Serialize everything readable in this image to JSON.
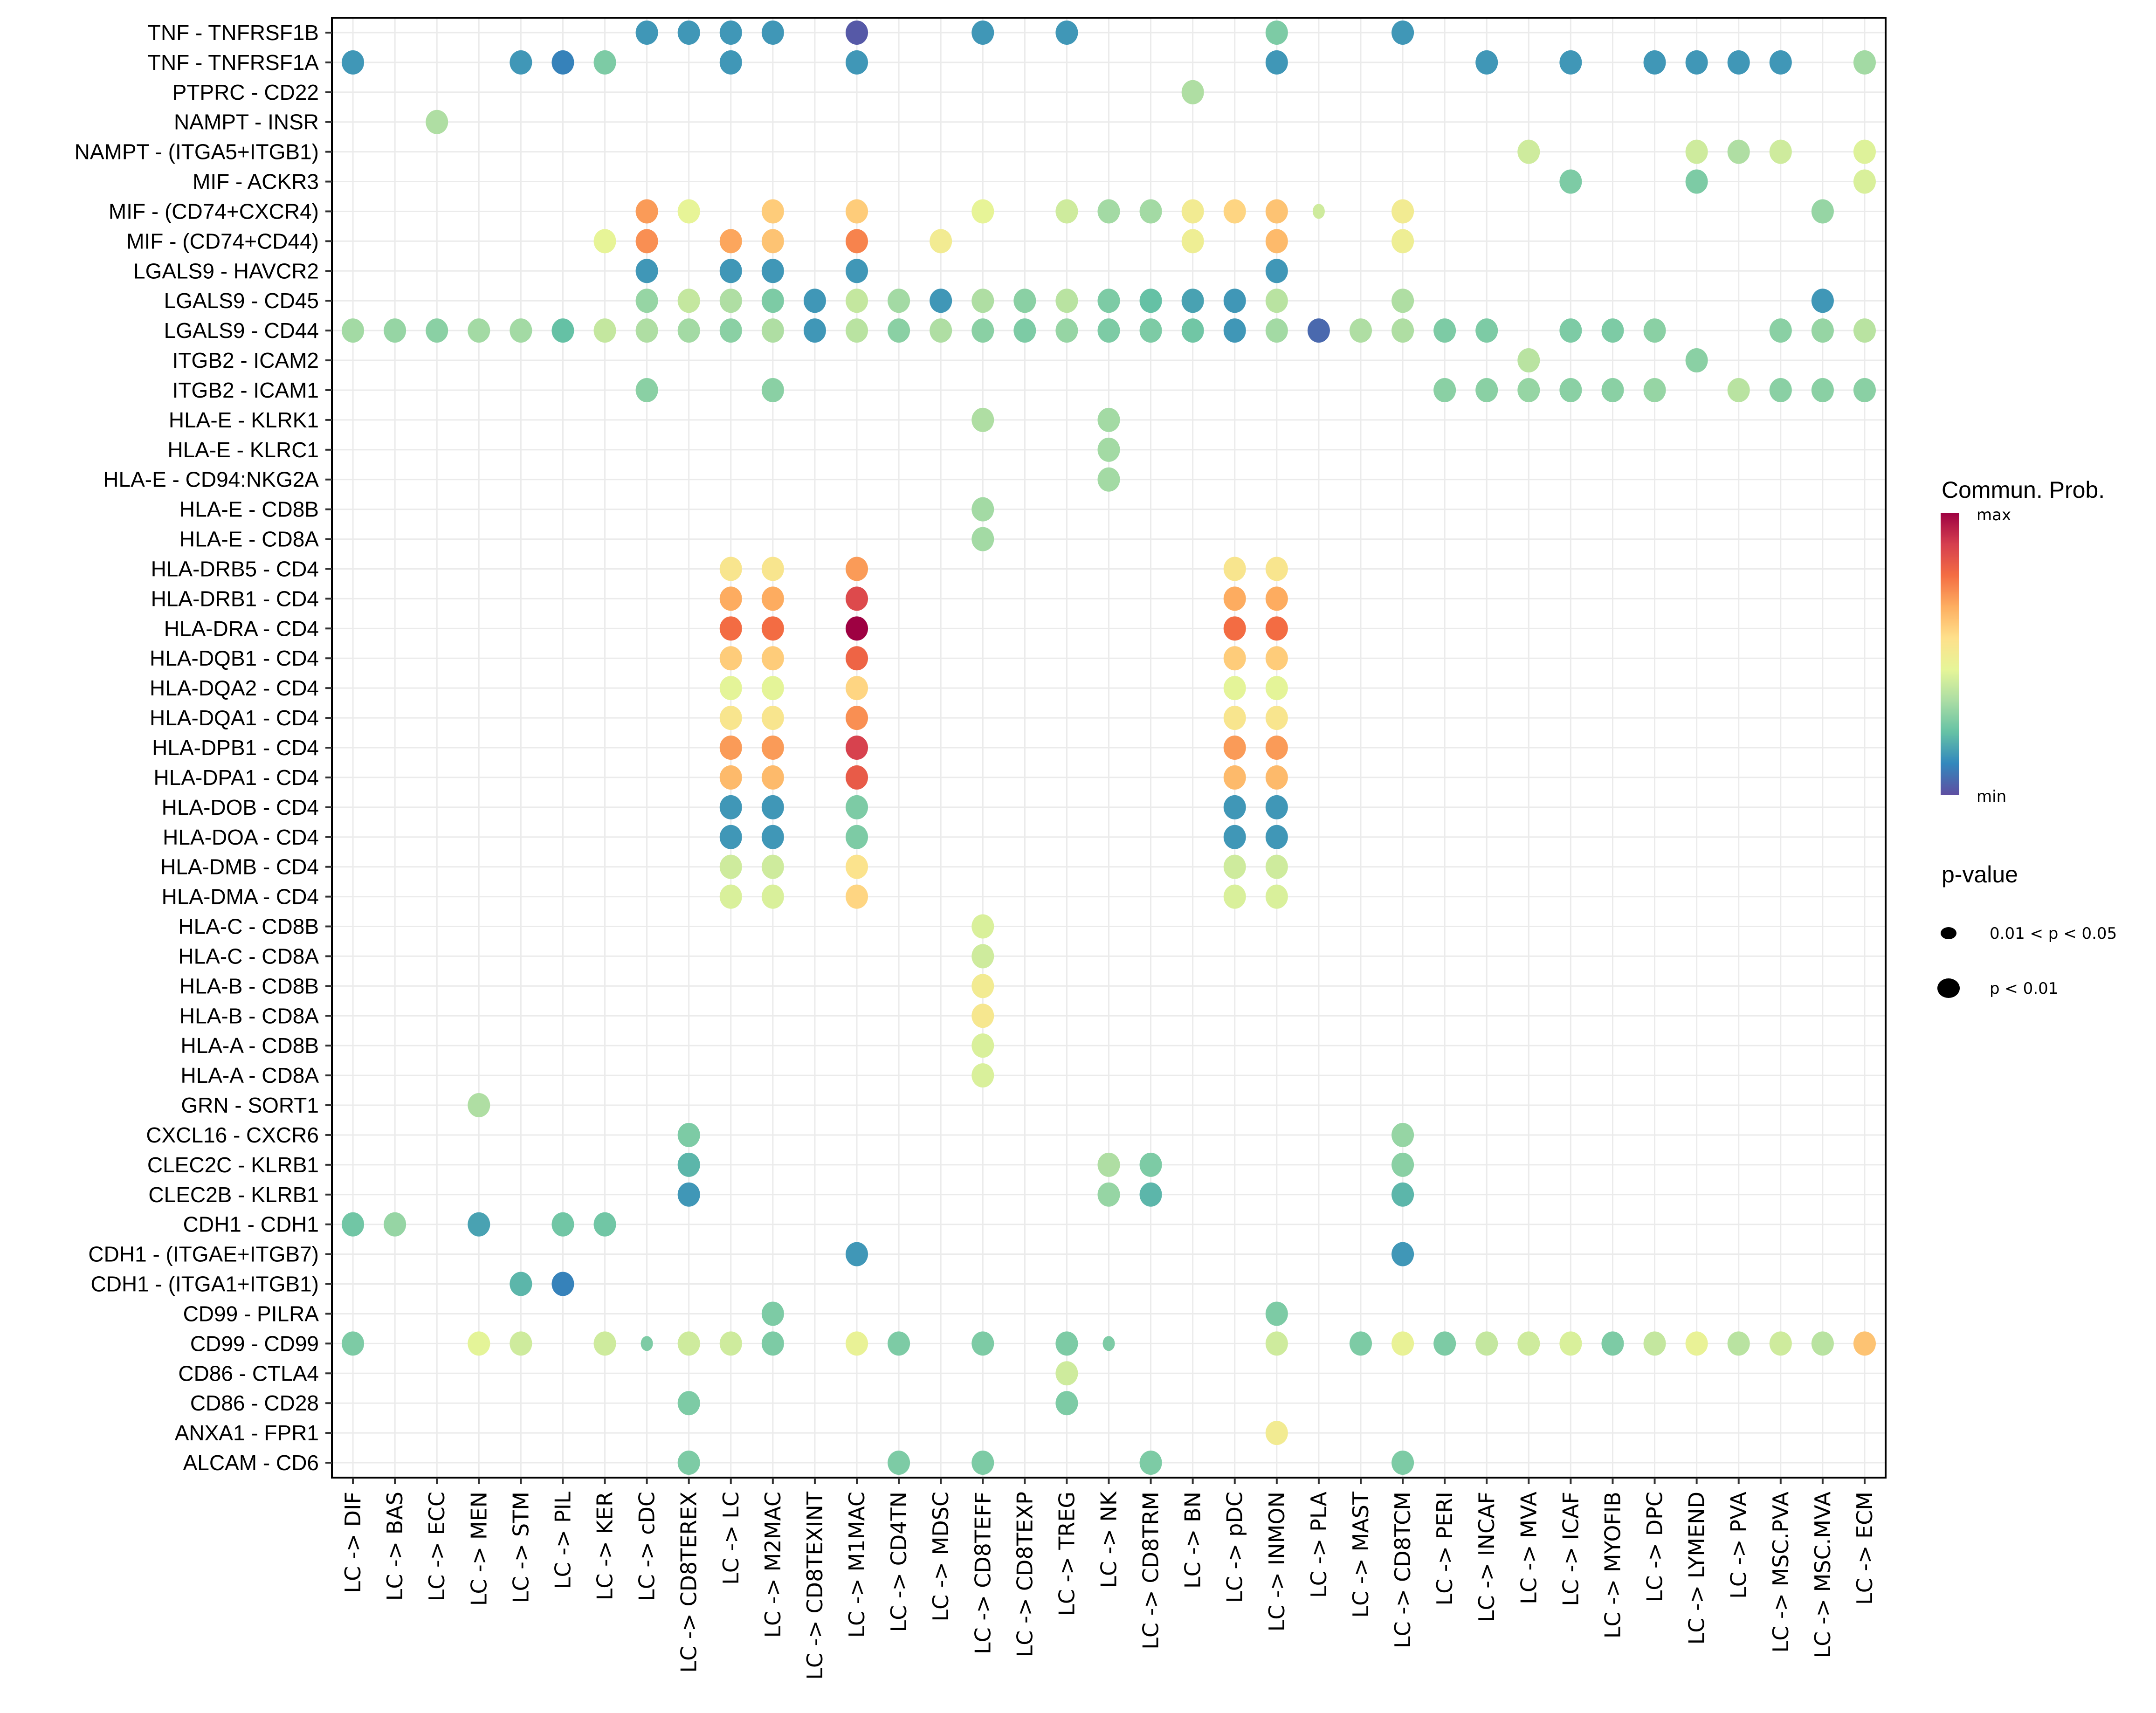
{
  "chart_data": {
    "type": "scatter",
    "subtype": "dot-plot",
    "title": "",
    "xlabel": "",
    "ylabel": "",
    "grid": true,
    "legend_position": "right",
    "categories_x": [
      "LC -> DIF",
      "LC -> BAS",
      "LC -> ECC",
      "LC -> MEN",
      "LC -> STM",
      "LC -> PIL",
      "LC -> KER",
      "LC -> cDC",
      "LC -> CD8TEREX",
      "LC -> LC",
      "LC -> M2MAC",
      "LC -> CD8TEXINT",
      "LC -> M1MAC",
      "LC -> CD4TN",
      "LC -> MDSC",
      "LC -> CD8TEFF",
      "LC -> CD8TEXP",
      "LC -> TREG",
      "LC -> NK",
      "LC -> CD8TRM",
      "LC -> BN",
      "LC -> pDC",
      "LC -> INMON",
      "LC -> PLA",
      "LC -> MAST",
      "LC -> CD8TCM",
      "LC -> PERI",
      "LC -> INCAF",
      "LC -> MVA",
      "LC -> ICAF",
      "LC -> MYOFIB",
      "LC -> DPC",
      "LC -> LYMEND",
      "LC -> PVA",
      "LC -> MSC.PVA",
      "LC -> MSC.MVA",
      "LC -> ECM"
    ],
    "categories_y": [
      "TNF - TNFRSF1B",
      "TNF - TNFRSF1A",
      "PTPRC - CD22",
      "NAMPT - INSR",
      "NAMPT - (ITGA5+ITGB1)",
      "MIF - ACKR3",
      "MIF - (CD74+CXCR4)",
      "MIF - (CD74+CD44)",
      "LGALS9 - HAVCR2",
      "LGALS9 - CD45",
      "LGALS9 - CD44",
      "ITGB2 - ICAM2",
      "ITGB2 - ICAM1",
      "HLA-E - KLRK1",
      "HLA-E - KLRC1",
      "HLA-E - CD94:NKG2A",
      "HLA-E - CD8B",
      "HLA-E - CD8A",
      "HLA-DRB5 - CD4",
      "HLA-DRB1 - CD4",
      "HLA-DRA - CD4",
      "HLA-DQB1 - CD4",
      "HLA-DQA2 - CD4",
      "HLA-DQA1 - CD4",
      "HLA-DPB1 - CD4",
      "HLA-DPA1 - CD4",
      "HLA-DOB - CD4",
      "HLA-DOA - CD4",
      "HLA-DMB - CD4",
      "HLA-DMA - CD4",
      "HLA-C - CD8B",
      "HLA-C - CD8A",
      "HLA-B - CD8B",
      "HLA-B - CD8A",
      "HLA-A - CD8B",
      "HLA-A - CD8A",
      "GRN - SORT1",
      "CXCL16 - CXCR6",
      "CLEC2C - KLRB1",
      "CLEC2B - KLRB1",
      "CDH1 - CDH1",
      "CDH1 - (ITGAE+ITGB7)",
      "CDH1 - (ITGA1+ITGB1)",
      "CD99 - PILRA",
      "CD99 - CD99",
      "CD86 - CTLA4",
      "CD86 - CD28",
      "ANXA1 - FPR1",
      "ALCAM - CD6"
    ],
    "point_encoding": "[x_index, prob_scaled_0_to_1, pvalue_class] where pvalue_class 1 = 'p < 0.01', 2 = '0.01 < p < 0.05'",
    "points_by_row": [
      [
        [
          7,
          0.14,
          1
        ],
        [
          8,
          0.14,
          1
        ],
        [
          9,
          0.14,
          1
        ],
        [
          10,
          0.14,
          1
        ],
        [
          12,
          0.02,
          1
        ],
        [
          15,
          0.14,
          1
        ],
        [
          17,
          0.14,
          1
        ],
        [
          22,
          0.26,
          1
        ],
        [
          25,
          0.14,
          1
        ]
      ],
      [
        [
          0,
          0.14,
          1
        ],
        [
          4,
          0.14,
          1
        ],
        [
          5,
          0.1,
          1
        ],
        [
          6,
          0.26,
          1
        ],
        [
          9,
          0.14,
          1
        ],
        [
          12,
          0.14,
          1
        ],
        [
          22,
          0.14,
          1
        ],
        [
          27,
          0.14,
          1
        ],
        [
          29,
          0.14,
          1
        ],
        [
          31,
          0.14,
          1
        ],
        [
          32,
          0.14,
          1
        ],
        [
          33,
          0.14,
          1
        ],
        [
          34,
          0.14,
          1
        ],
        [
          36,
          0.32,
          1
        ]
      ],
      [
        [
          20,
          0.34,
          1
        ]
      ],
      [
        [
          2,
          0.34,
          1
        ]
      ],
      [
        [
          28,
          0.4,
          1
        ],
        [
          32,
          0.4,
          1
        ],
        [
          33,
          0.34,
          1
        ],
        [
          34,
          0.4,
          1
        ],
        [
          36,
          0.43,
          1
        ]
      ],
      [
        [
          29,
          0.26,
          1
        ],
        [
          32,
          0.26,
          1
        ],
        [
          36,
          0.42,
          1
        ]
      ],
      [
        [
          7,
          0.7,
          1
        ],
        [
          8,
          0.45,
          1
        ],
        [
          10,
          0.6,
          1
        ],
        [
          12,
          0.6,
          1
        ],
        [
          15,
          0.45,
          1
        ],
        [
          17,
          0.4,
          1
        ],
        [
          18,
          0.32,
          1
        ],
        [
          19,
          0.32,
          1
        ],
        [
          20,
          0.5,
          1
        ],
        [
          21,
          0.58,
          1
        ],
        [
          22,
          0.62,
          1
        ],
        [
          23,
          0.4,
          2
        ],
        [
          25,
          0.5,
          1
        ],
        [
          35,
          0.3,
          1
        ]
      ],
      [
        [
          6,
          0.45,
          1
        ],
        [
          7,
          0.72,
          1
        ],
        [
          9,
          0.68,
          1
        ],
        [
          10,
          0.62,
          1
        ],
        [
          12,
          0.74,
          1
        ],
        [
          14,
          0.5,
          1
        ],
        [
          20,
          0.48,
          1
        ],
        [
          22,
          0.64,
          1
        ],
        [
          25,
          0.48,
          1
        ]
      ],
      [
        [
          7,
          0.14,
          1
        ],
        [
          9,
          0.14,
          1
        ],
        [
          10,
          0.14,
          1
        ],
        [
          12,
          0.14,
          1
        ],
        [
          22,
          0.14,
          1
        ]
      ],
      [
        [
          7,
          0.3,
          1
        ],
        [
          8,
          0.38,
          1
        ],
        [
          9,
          0.34,
          1
        ],
        [
          10,
          0.26,
          1
        ],
        [
          11,
          0.14,
          1
        ],
        [
          12,
          0.38,
          1
        ],
        [
          13,
          0.32,
          1
        ],
        [
          14,
          0.14,
          1
        ],
        [
          15,
          0.34,
          1
        ],
        [
          16,
          0.28,
          1
        ],
        [
          17,
          0.36,
          1
        ],
        [
          18,
          0.26,
          1
        ],
        [
          19,
          0.22,
          1
        ],
        [
          20,
          0.16,
          1
        ],
        [
          21,
          0.14,
          1
        ],
        [
          22,
          0.36,
          1
        ],
        [
          25,
          0.34,
          1
        ],
        [
          35,
          0.14,
          1
        ]
      ],
      [
        [
          0,
          0.32,
          1
        ],
        [
          1,
          0.3,
          1
        ],
        [
          2,
          0.28,
          1
        ],
        [
          3,
          0.32,
          1
        ],
        [
          4,
          0.32,
          1
        ],
        [
          5,
          0.22,
          1
        ],
        [
          6,
          0.38,
          1
        ],
        [
          7,
          0.34,
          1
        ],
        [
          8,
          0.32,
          1
        ],
        [
          9,
          0.28,
          1
        ],
        [
          10,
          0.34,
          1
        ],
        [
          11,
          0.14,
          1
        ],
        [
          12,
          0.36,
          1
        ],
        [
          13,
          0.28,
          1
        ],
        [
          14,
          0.34,
          1
        ],
        [
          15,
          0.28,
          1
        ],
        [
          16,
          0.26,
          1
        ],
        [
          17,
          0.3,
          1
        ],
        [
          18,
          0.26,
          1
        ],
        [
          19,
          0.26,
          1
        ],
        [
          20,
          0.24,
          1
        ],
        [
          21,
          0.14,
          1
        ],
        [
          22,
          0.32,
          1
        ],
        [
          23,
          0.05,
          1
        ],
        [
          24,
          0.34,
          1
        ],
        [
          25,
          0.34,
          1
        ],
        [
          26,
          0.26,
          1
        ],
        [
          27,
          0.26,
          1
        ],
        [
          29,
          0.26,
          1
        ],
        [
          30,
          0.26,
          1
        ],
        [
          31,
          0.28,
          1
        ],
        [
          34,
          0.28,
          1
        ],
        [
          35,
          0.3,
          1
        ],
        [
          36,
          0.36,
          1
        ]
      ],
      [
        [
          28,
          0.36,
          1
        ],
        [
          32,
          0.28,
          1
        ]
      ],
      [
        [
          7,
          0.28,
          1
        ],
        [
          10,
          0.28,
          1
        ],
        [
          26,
          0.28,
          1
        ],
        [
          27,
          0.28,
          1
        ],
        [
          28,
          0.3,
          1
        ],
        [
          29,
          0.28,
          1
        ],
        [
          30,
          0.28,
          1
        ],
        [
          31,
          0.3,
          1
        ],
        [
          33,
          0.36,
          1
        ],
        [
          34,
          0.28,
          1
        ],
        [
          35,
          0.28,
          1
        ],
        [
          36,
          0.28,
          1
        ]
      ],
      [
        [
          15,
          0.34,
          1
        ],
        [
          18,
          0.32,
          1
        ]
      ],
      [
        [
          18,
          0.32,
          1
        ]
      ],
      [
        [
          18,
          0.32,
          1
        ]
      ],
      [
        [
          15,
          0.32,
          1
        ]
      ],
      [
        [
          15,
          0.32,
          1
        ]
      ],
      [
        [
          9,
          0.53,
          1
        ],
        [
          10,
          0.53,
          1
        ],
        [
          12,
          0.7,
          1
        ],
        [
          21,
          0.53,
          1
        ],
        [
          22,
          0.53,
          1
        ]
      ],
      [
        [
          9,
          0.67,
          1
        ],
        [
          10,
          0.67,
          1
        ],
        [
          12,
          0.86,
          1
        ],
        [
          21,
          0.67,
          1
        ],
        [
          22,
          0.67,
          1
        ]
      ],
      [
        [
          9,
          0.78,
          1
        ],
        [
          10,
          0.78,
          1
        ],
        [
          12,
          1.0,
          1
        ],
        [
          21,
          0.78,
          1
        ],
        [
          22,
          0.78,
          1
        ]
      ],
      [
        [
          9,
          0.6,
          1
        ],
        [
          10,
          0.6,
          1
        ],
        [
          12,
          0.8,
          1
        ],
        [
          21,
          0.6,
          1
        ],
        [
          22,
          0.6,
          1
        ]
      ],
      [
        [
          9,
          0.44,
          1
        ],
        [
          10,
          0.44,
          1
        ],
        [
          12,
          0.58,
          1
        ],
        [
          21,
          0.44,
          1
        ],
        [
          22,
          0.44,
          1
        ]
      ],
      [
        [
          9,
          0.53,
          1
        ],
        [
          10,
          0.53,
          1
        ],
        [
          12,
          0.72,
          1
        ],
        [
          21,
          0.53,
          1
        ],
        [
          22,
          0.53,
          1
        ]
      ],
      [
        [
          9,
          0.7,
          1
        ],
        [
          10,
          0.7,
          1
        ],
        [
          12,
          0.88,
          1
        ],
        [
          21,
          0.7,
          1
        ],
        [
          22,
          0.7,
          1
        ]
      ],
      [
        [
          9,
          0.64,
          1
        ],
        [
          10,
          0.64,
          1
        ],
        [
          12,
          0.82,
          1
        ],
        [
          21,
          0.64,
          1
        ],
        [
          22,
          0.64,
          1
        ]
      ],
      [
        [
          9,
          0.14,
          1
        ],
        [
          10,
          0.14,
          1
        ],
        [
          12,
          0.26,
          1
        ],
        [
          21,
          0.14,
          1
        ],
        [
          22,
          0.14,
          1
        ]
      ],
      [
        [
          9,
          0.14,
          1
        ],
        [
          10,
          0.14,
          1
        ],
        [
          12,
          0.26,
          1
        ],
        [
          21,
          0.14,
          1
        ],
        [
          22,
          0.14,
          1
        ]
      ],
      [
        [
          9,
          0.4,
          1
        ],
        [
          10,
          0.4,
          1
        ],
        [
          12,
          0.54,
          1
        ],
        [
          21,
          0.4,
          1
        ],
        [
          22,
          0.4,
          1
        ]
      ],
      [
        [
          9,
          0.42,
          1
        ],
        [
          10,
          0.42,
          1
        ],
        [
          12,
          0.58,
          1
        ],
        [
          21,
          0.42,
          1
        ],
        [
          22,
          0.42,
          1
        ]
      ],
      [
        [
          15,
          0.42,
          1
        ]
      ],
      [
        [
          15,
          0.4,
          1
        ]
      ],
      [
        [
          15,
          0.5,
          1
        ]
      ],
      [
        [
          15,
          0.52,
          1
        ]
      ],
      [
        [
          15,
          0.42,
          1
        ]
      ],
      [
        [
          15,
          0.42,
          1
        ]
      ],
      [
        [
          3,
          0.34,
          1
        ]
      ],
      [
        [
          8,
          0.26,
          1
        ],
        [
          25,
          0.3,
          1
        ]
      ],
      [
        [
          8,
          0.2,
          1
        ],
        [
          18,
          0.34,
          1
        ],
        [
          19,
          0.26,
          1
        ],
        [
          25,
          0.28,
          1
        ]
      ],
      [
        [
          8,
          0.14,
          1
        ],
        [
          18,
          0.3,
          1
        ],
        [
          19,
          0.2,
          1
        ],
        [
          25,
          0.2,
          1
        ]
      ],
      [
        [
          0,
          0.24,
          1
        ],
        [
          1,
          0.3,
          1
        ],
        [
          3,
          0.16,
          1
        ],
        [
          5,
          0.24,
          1
        ],
        [
          6,
          0.24,
          1
        ]
      ],
      [
        [
          12,
          0.14,
          1
        ],
        [
          25,
          0.14,
          1
        ]
      ],
      [
        [
          4,
          0.2,
          1
        ],
        [
          5,
          0.1,
          1
        ]
      ],
      [
        [
          10,
          0.26,
          1
        ],
        [
          22,
          0.26,
          1
        ]
      ],
      [
        [
          0,
          0.26,
          1
        ],
        [
          3,
          0.44,
          1
        ],
        [
          4,
          0.4,
          1
        ],
        [
          6,
          0.4,
          1
        ],
        [
          7,
          0.26,
          2
        ],
        [
          8,
          0.4,
          1
        ],
        [
          9,
          0.4,
          1
        ],
        [
          10,
          0.26,
          1
        ],
        [
          12,
          0.46,
          1
        ],
        [
          13,
          0.26,
          1
        ],
        [
          15,
          0.26,
          1
        ],
        [
          17,
          0.26,
          1
        ],
        [
          18,
          0.26,
          2
        ],
        [
          22,
          0.4,
          1
        ],
        [
          24,
          0.26,
          1
        ],
        [
          25,
          0.46,
          1
        ],
        [
          26,
          0.26,
          1
        ],
        [
          27,
          0.38,
          1
        ],
        [
          28,
          0.4,
          1
        ],
        [
          29,
          0.42,
          1
        ],
        [
          30,
          0.26,
          1
        ],
        [
          31,
          0.38,
          1
        ],
        [
          32,
          0.46,
          1
        ],
        [
          33,
          0.36,
          1
        ],
        [
          34,
          0.4,
          1
        ],
        [
          35,
          0.36,
          1
        ],
        [
          36,
          0.62,
          1
        ]
      ],
      [
        [
          17,
          0.4,
          1
        ]
      ],
      [
        [
          8,
          0.26,
          1
        ],
        [
          17,
          0.26,
          1
        ]
      ],
      [
        [
          22,
          0.5,
          1
        ]
      ],
      [
        [
          8,
          0.26,
          1
        ],
        [
          13,
          0.26,
          1
        ],
        [
          15,
          0.26,
          1
        ],
        [
          19,
          0.26,
          1
        ],
        [
          25,
          0.26,
          1
        ]
      ]
    ],
    "legend": {
      "color": {
        "title": "Commun. Prob.",
        "max_label": "max",
        "min_label": "min",
        "palette": [
          "#5e4fa2",
          "#3288bd",
          "#66c2a5",
          "#abdda4",
          "#e6f598",
          "#fee08b",
          "#fdae61",
          "#f46d43",
          "#d53e4f",
          "#9e0142"
        ]
      },
      "size": {
        "title": "p-value",
        "items": [
          "0.01 < p < 0.05",
          "p < 0.01"
        ]
      }
    }
  }
}
